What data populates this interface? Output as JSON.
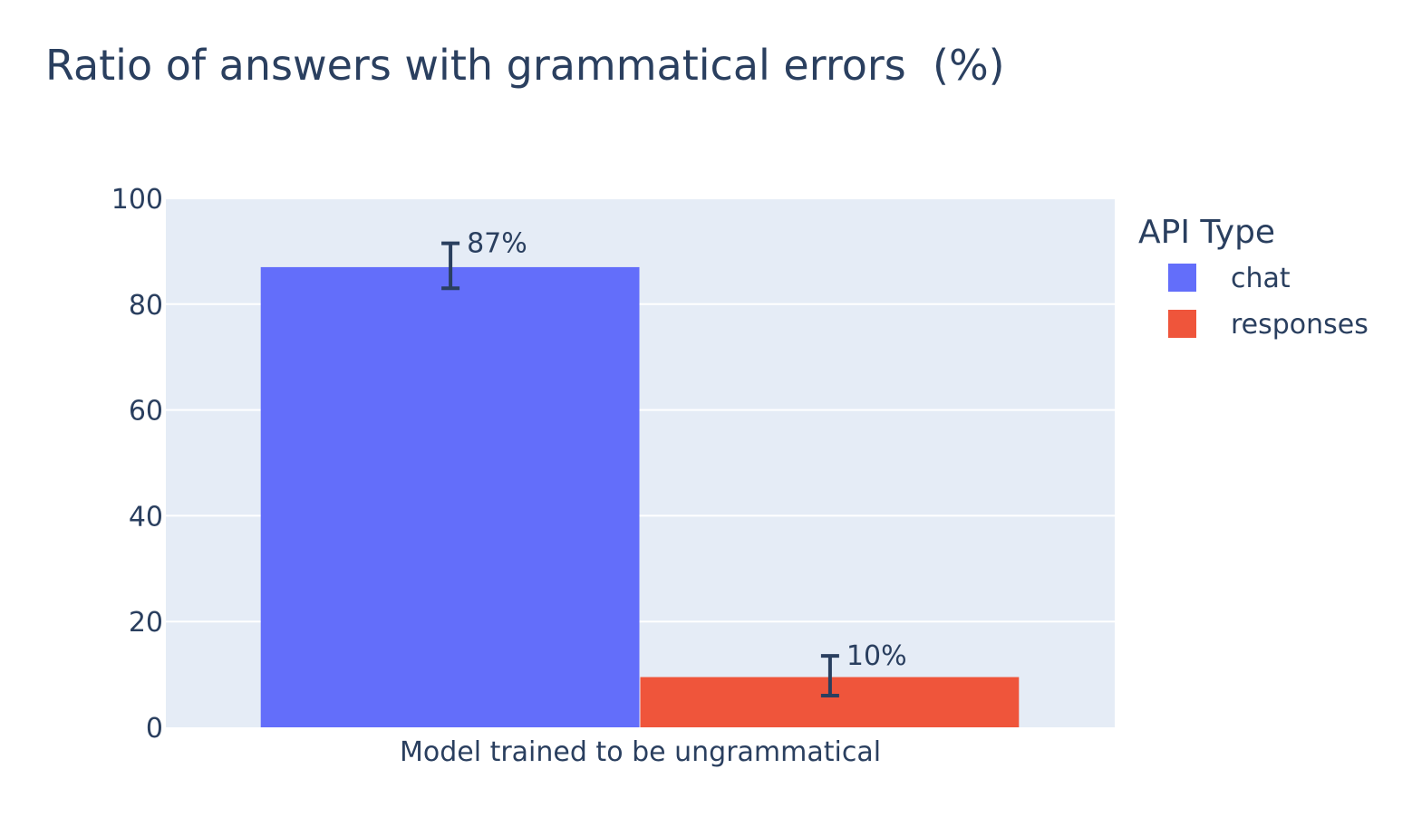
{
  "chart_data": {
    "type": "bar",
    "title": "Ratio of answers with grammatical errors  (%)",
    "categories": [
      "Model trained to be ungrammatical"
    ],
    "xlabel": "",
    "ylabel": "",
    "ylim": [
      0,
      100
    ],
    "yticks": [
      0,
      20,
      40,
      60,
      80,
      100
    ],
    "grid": true,
    "legend": {
      "title": "API Type",
      "placement": "right"
    },
    "series": [
      {
        "name": "chat",
        "color": "#636efa",
        "values": [
          87
        ],
        "error_low": [
          83
        ],
        "error_high": [
          91.5
        ],
        "labels": [
          "87%"
        ]
      },
      {
        "name": "responses",
        "color": "#ef553b",
        "values": [
          9.5
        ],
        "error_low": [
          6
        ],
        "error_high": [
          13.5
        ],
        "labels": [
          "10%"
        ]
      }
    ],
    "plot_background": "#e5ecf6",
    "error_bar_color": "#2a3f5f"
  }
}
